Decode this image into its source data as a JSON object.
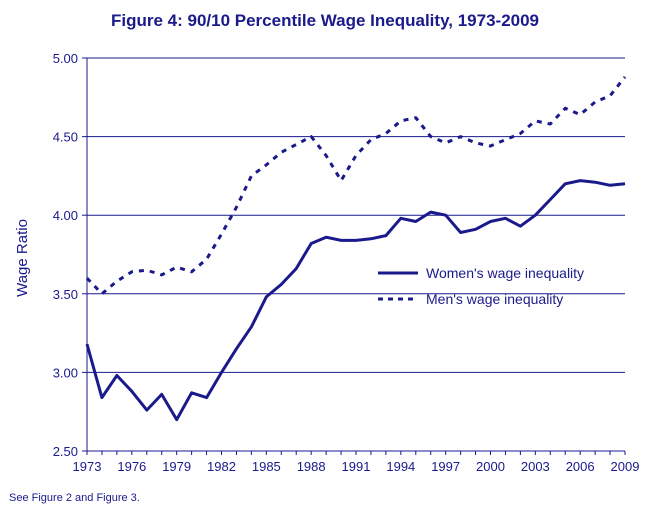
{
  "colors": {
    "ink": "#1a1a8c",
    "grid": "#1a1a8c",
    "line": "#1a1a8c",
    "background": "#ffffff"
  },
  "chart_data": {
    "type": "line",
    "title": "Figure 4: 90/10 Percentile Wage Inequality, 1973-2009",
    "xlabel": "",
    "ylabel": "Wage Ratio",
    "xlim": [
      1973,
      2009
    ],
    "ylim": [
      2.5,
      5.0
    ],
    "yticks": [
      "2.50",
      "3.00",
      "3.50",
      "4.00",
      "4.50",
      "5.00"
    ],
    "xticks": [
      "1973",
      "1976",
      "1979",
      "1982",
      "1985",
      "1988",
      "1991",
      "1994",
      "1997",
      "2000",
      "2003",
      "2006",
      "2009"
    ],
    "grid": "horizontal",
    "legend_position": "center-right",
    "x": [
      1973,
      1974,
      1975,
      1976,
      1977,
      1978,
      1979,
      1980,
      1981,
      1982,
      1983,
      1984,
      1985,
      1986,
      1987,
      1988,
      1989,
      1990,
      1991,
      1992,
      1993,
      1994,
      1995,
      1996,
      1997,
      1998,
      1999,
      2000,
      2001,
      2002,
      2003,
      2004,
      2005,
      2006,
      2007,
      2008,
      2009
    ],
    "series": [
      {
        "name": "Women's wage inequality",
        "style": "solid",
        "values": [
          3.18,
          2.84,
          2.98,
          2.88,
          2.76,
          2.86,
          2.7,
          2.87,
          2.84,
          3.0,
          3.15,
          3.29,
          3.48,
          3.56,
          3.66,
          3.82,
          3.86,
          3.84,
          3.84,
          3.85,
          3.87,
          3.98,
          3.96,
          4.02,
          4.0,
          3.89,
          3.91,
          3.96,
          3.98,
          3.93,
          4.0,
          4.1,
          4.2,
          4.22,
          4.21,
          4.19,
          4.2
        ]
      },
      {
        "name": "Men's wage inequality",
        "style": "dashed",
        "values": [
          3.6,
          3.5,
          3.58,
          3.64,
          3.65,
          3.62,
          3.67,
          3.64,
          3.72,
          3.88,
          4.05,
          4.25,
          4.32,
          4.4,
          4.45,
          4.5,
          4.38,
          4.22,
          4.38,
          4.48,
          4.52,
          4.6,
          4.62,
          4.5,
          4.46,
          4.5,
          4.46,
          4.44,
          4.48,
          4.52,
          4.6,
          4.58,
          4.68,
          4.64,
          4.72,
          4.76,
          4.88
        ]
      }
    ]
  },
  "footnote": "See Figure 2 and Figure 3."
}
